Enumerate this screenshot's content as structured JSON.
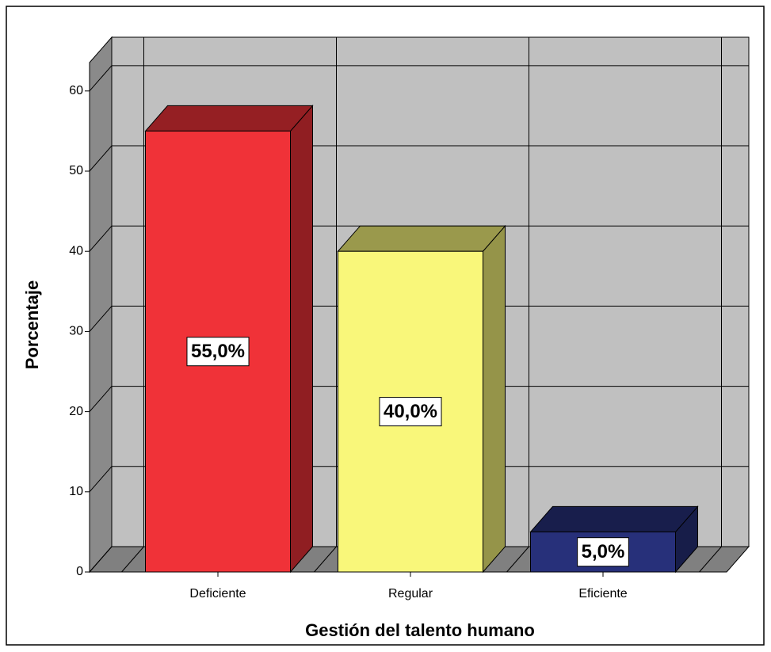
{
  "chart_data": {
    "type": "bar3d",
    "xlabel": "Gestión del talento humano",
    "ylabel": "Porcentaje",
    "categories": [
      "Deficiente",
      "Regular",
      "Eficiente"
    ],
    "values": [
      55,
      40,
      5
    ],
    "value_labels": [
      "55,0%",
      "40,0%",
      "5,0%"
    ],
    "colors": [
      "#f03238",
      "#f9f77a",
      "#27307a"
    ],
    "ylim": [
      0,
      63.5
    ],
    "yticks": [
      0,
      10,
      20,
      30,
      40,
      50,
      60
    ],
    "grid": true
  }
}
